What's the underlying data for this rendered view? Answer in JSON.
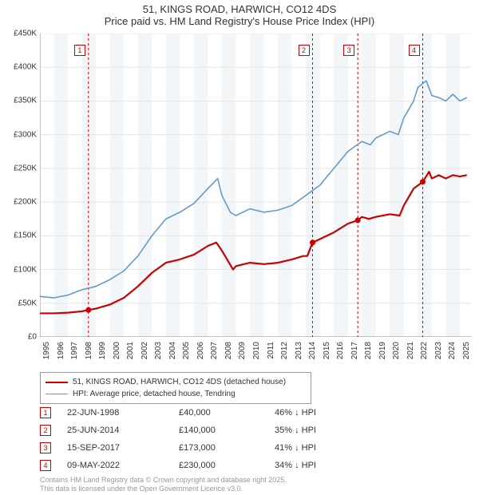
{
  "title": {
    "line1": "51, KINGS ROAD, HARWICH, CO12 4DS",
    "line2": "Price paid vs. HM Land Registry's House Price Index (HPI)",
    "fontsize": 13,
    "color": "#333333"
  },
  "chart": {
    "type": "line",
    "background_color": "#ffffff",
    "plot_band_color": "#f2f6f9",
    "grid_color": "#e6e6e6",
    "axis_color": "#888888",
    "x": {
      "min": 1995,
      "max": 2025.8,
      "ticks": [
        1995,
        1996,
        1997,
        1998,
        1999,
        2000,
        2001,
        2002,
        2003,
        2004,
        2005,
        2006,
        2007,
        2008,
        2009,
        2010,
        2011,
        2012,
        2013,
        2014,
        2015,
        2016,
        2017,
        2018,
        2019,
        2020,
        2021,
        2022,
        2023,
        2024,
        2025
      ],
      "label_fontsize": 10,
      "label_rotation": -90
    },
    "y": {
      "min": 0,
      "max": 450000,
      "ticks": [
        0,
        50000,
        100000,
        150000,
        200000,
        250000,
        300000,
        350000,
        400000,
        450000
      ],
      "tick_labels": [
        "£0",
        "£50K",
        "£100K",
        "£150K",
        "£200K",
        "£250K",
        "£300K",
        "£350K",
        "£400K",
        "£450K"
      ],
      "label_fontsize": 10
    },
    "vertical_markers": {
      "color": "#cc0000",
      "dash": "3,3",
      "width": 1,
      "positions": [
        1998.47,
        2014.48,
        2017.71,
        2022.35
      ]
    },
    "series": [
      {
        "name": "price_paid",
        "label": "51, KINGS ROAD, HARWICH, CO12 4DS (detached house)",
        "color": "#cc0000",
        "width": 2.2,
        "data": [
          [
            1995,
            35000
          ],
          [
            1996,
            35000
          ],
          [
            1997,
            36000
          ],
          [
            1998,
            38000
          ],
          [
            1998.47,
            40000
          ],
          [
            1999,
            42000
          ],
          [
            2000,
            48000
          ],
          [
            2001,
            58000
          ],
          [
            2002,
            75000
          ],
          [
            2003,
            95000
          ],
          [
            2004,
            110000
          ],
          [
            2005,
            115000
          ],
          [
            2006,
            122000
          ],
          [
            2007,
            135000
          ],
          [
            2007.6,
            140000
          ],
          [
            2008,
            128000
          ],
          [
            2008.8,
            100000
          ],
          [
            2009,
            105000
          ],
          [
            2010,
            110000
          ],
          [
            2011,
            108000
          ],
          [
            2012,
            110000
          ],
          [
            2013,
            115000
          ],
          [
            2013.8,
            120000
          ],
          [
            2014.1,
            120000
          ],
          [
            2014.48,
            140000
          ],
          [
            2015,
            145000
          ],
          [
            2016,
            155000
          ],
          [
            2017,
            168000
          ],
          [
            2017.71,
            173000
          ],
          [
            2018,
            178000
          ],
          [
            2018.5,
            175000
          ],
          [
            2019,
            178000
          ],
          [
            2020,
            182000
          ],
          [
            2020.7,
            180000
          ],
          [
            2021,
            195000
          ],
          [
            2021.7,
            220000
          ],
          [
            2022.35,
            230000
          ],
          [
            2022.8,
            245000
          ],
          [
            2023,
            235000
          ],
          [
            2023.5,
            240000
          ],
          [
            2024,
            235000
          ],
          [
            2024.5,
            240000
          ],
          [
            2025,
            238000
          ],
          [
            2025.5,
            240000
          ]
        ],
        "markers": [
          {
            "x": 1998.47,
            "y": 40000
          },
          {
            "x": 2014.48,
            "y": 140000
          },
          {
            "x": 2017.71,
            "y": 173000
          },
          {
            "x": 2022.35,
            "y": 230000
          }
        ],
        "marker_radius": 3.5
      },
      {
        "name": "hpi",
        "label": "HPI: Average price, detached house, Tendring",
        "color": "#6699cc",
        "width": 1.6,
        "data": [
          [
            1995,
            60000
          ],
          [
            1996,
            58000
          ],
          [
            1997,
            62000
          ],
          [
            1998,
            70000
          ],
          [
            1999,
            75000
          ],
          [
            2000,
            85000
          ],
          [
            2001,
            98000
          ],
          [
            2002,
            120000
          ],
          [
            2003,
            150000
          ],
          [
            2004,
            175000
          ],
          [
            2005,
            185000
          ],
          [
            2006,
            198000
          ],
          [
            2007,
            220000
          ],
          [
            2007.7,
            235000
          ],
          [
            2008,
            210000
          ],
          [
            2008.6,
            185000
          ],
          [
            2009,
            180000
          ],
          [
            2010,
            190000
          ],
          [
            2011,
            185000
          ],
          [
            2012,
            188000
          ],
          [
            2013,
            195000
          ],
          [
            2014,
            210000
          ],
          [
            2015,
            225000
          ],
          [
            2016,
            250000
          ],
          [
            2017,
            275000
          ],
          [
            2018,
            290000
          ],
          [
            2018.6,
            285000
          ],
          [
            2019,
            295000
          ],
          [
            2020,
            305000
          ],
          [
            2020.6,
            300000
          ],
          [
            2021,
            325000
          ],
          [
            2021.7,
            350000
          ],
          [
            2022,
            370000
          ],
          [
            2022.6,
            380000
          ],
          [
            2023,
            358000
          ],
          [
            2023.5,
            355000
          ],
          [
            2024,
            350000
          ],
          [
            2024.5,
            360000
          ],
          [
            2025,
            350000
          ],
          [
            2025.5,
            355000
          ]
        ]
      }
    ]
  },
  "legend": {
    "border_color": "#999999",
    "items": [
      {
        "color": "#cc0000",
        "width": 2.2,
        "label": "51, KINGS ROAD, HARWICH, CO12 4DS (detached house)"
      },
      {
        "color": "#6699cc",
        "width": 1.6,
        "label": "HPI: Average price, detached house, Tendring"
      }
    ]
  },
  "marker_table": {
    "badge_border": "#cc0000",
    "badge_text_color": "#cc0000",
    "rows": [
      {
        "n": "1",
        "date": "22-JUN-1998",
        "price": "£40,000",
        "delta": "46% ↓ HPI"
      },
      {
        "n": "2",
        "date": "25-JUN-2014",
        "price": "£140,000",
        "delta": "35% ↓ HPI"
      },
      {
        "n": "3",
        "date": "15-SEP-2017",
        "price": "£173,000",
        "delta": "41% ↓ HPI"
      },
      {
        "n": "4",
        "date": "09-MAY-2022",
        "price": "£230,000",
        "delta": "34% ↓ HPI"
      }
    ]
  },
  "footer": {
    "line1": "Contains HM Land Registry data © Crown copyright and database right 2025.",
    "line2": "This data is licensed under the Open Government Licence v3.0.",
    "color": "#999999",
    "fontsize": 9
  }
}
